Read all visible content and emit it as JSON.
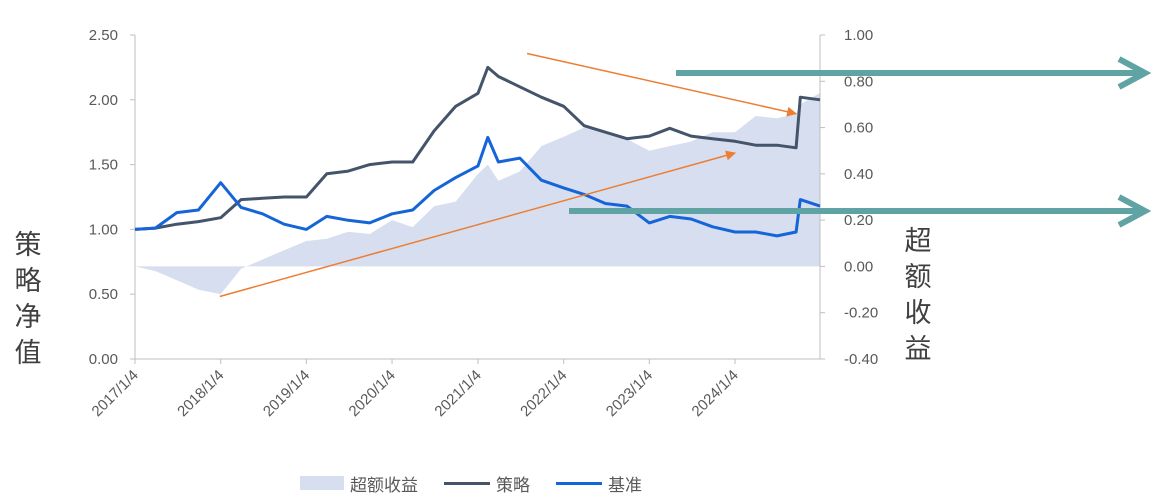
{
  "chart_data": {
    "type": "line",
    "left_axis": {
      "label": "策略净值",
      "ylim": [
        0,
        2.5
      ],
      "ticks": [
        "0.00",
        "0.50",
        "1.00",
        "1.50",
        "2.00",
        "2.50"
      ]
    },
    "right_axis": {
      "label": "超额收益",
      "ylim": [
        -0.4,
        1.0
      ],
      "ticks": [
        "-0.40",
        "-0.20",
        "0.00",
        "0.20",
        "0.40",
        "0.60",
        "0.80",
        "1.00"
      ]
    },
    "x_tick_labels": [
      "2017/1/4",
      "2018/1/4",
      "2019/1/4",
      "2020/1/4",
      "2021/1/4",
      "2022/1/4",
      "2023/1/4",
      "2024/1/4"
    ],
    "x": [
      "2017-01-04",
      "2017-04-01",
      "2017-07-01",
      "2017-10-01",
      "2018-01-04",
      "2018-04-01",
      "2018-07-01",
      "2018-10-01",
      "2019-01-04",
      "2019-04-01",
      "2019-07-01",
      "2019-10-01",
      "2020-01-04",
      "2020-04-01",
      "2020-07-01",
      "2020-10-01",
      "2021-01-04",
      "2021-02-15",
      "2021-04-01",
      "2021-07-01",
      "2021-10-01",
      "2022-01-04",
      "2022-04-01",
      "2022-07-01",
      "2022-10-01",
      "2023-01-04",
      "2023-04-01",
      "2023-07-01",
      "2023-10-01",
      "2024-01-04",
      "2024-04-01",
      "2024-07-01",
      "2024-09-20",
      "2024-10-08",
      "2024-12-31"
    ],
    "series": [
      {
        "name": "超额收益",
        "axis": "right",
        "style": "area",
        "color": "#D6DEF0",
        "values": [
          0.0,
          -0.02,
          -0.06,
          -0.1,
          -0.12,
          -0.01,
          0.03,
          0.07,
          0.11,
          0.12,
          0.15,
          0.14,
          0.2,
          0.17,
          0.26,
          0.28,
          0.4,
          0.44,
          0.37,
          0.41,
          0.52,
          0.56,
          0.6,
          0.58,
          0.55,
          0.5,
          0.52,
          0.54,
          0.58,
          0.58,
          0.65,
          0.64,
          0.66,
          0.7,
          0.75
        ]
      },
      {
        "name": "策略",
        "axis": "left",
        "style": "line",
        "color": "#44546A",
        "values": [
          1.0,
          1.01,
          1.04,
          1.06,
          1.09,
          1.23,
          1.24,
          1.25,
          1.25,
          1.43,
          1.45,
          1.5,
          1.52,
          1.52,
          1.76,
          1.95,
          2.05,
          2.25,
          2.18,
          2.1,
          2.02,
          1.95,
          1.8,
          1.75,
          1.7,
          1.72,
          1.78,
          1.72,
          1.7,
          1.68,
          1.65,
          1.65,
          1.63,
          2.02,
          2.0
        ]
      },
      {
        "name": "基准",
        "axis": "left",
        "style": "line",
        "color": "#1565D8",
        "values": [
          1.0,
          1.01,
          1.13,
          1.15,
          1.36,
          1.17,
          1.12,
          1.04,
          1.0,
          1.1,
          1.07,
          1.05,
          1.12,
          1.15,
          1.3,
          1.4,
          1.49,
          1.71,
          1.52,
          1.55,
          1.38,
          1.32,
          1.27,
          1.2,
          1.18,
          1.05,
          1.1,
          1.08,
          1.02,
          0.98,
          0.98,
          0.95,
          0.98,
          1.23,
          1.18
        ]
      }
    ],
    "legend": {
      "placement": "bottom",
      "items": [
        {
          "label": "超额收益",
          "kind": "area",
          "color": "#D6DEF0"
        },
        {
          "label": "策略",
          "kind": "line",
          "color": "#44546A"
        },
        {
          "label": "基准",
          "kind": "line",
          "color": "#1565D8"
        }
      ]
    },
    "annotations": [
      {
        "kind": "trend-arrow",
        "color": "#ED7D31",
        "from": [
          "2017-12-31",
          -0.13
        ],
        "to": [
          "2024-01-04",
          0.49
        ]
      },
      {
        "kind": "trend-arrow",
        "color": "#ED7D31",
        "from": [
          "2021-08-01",
          0.92
        ],
        "to": [
          "2024-09-20",
          0.66
        ]
      },
      {
        "kind": "pointer-arrow",
        "color": "#5FA3A5",
        "target": "策略"
      },
      {
        "kind": "pointer-arrow",
        "color": "#5FA3A5",
        "target": "基准"
      }
    ],
    "grid": false
  }
}
